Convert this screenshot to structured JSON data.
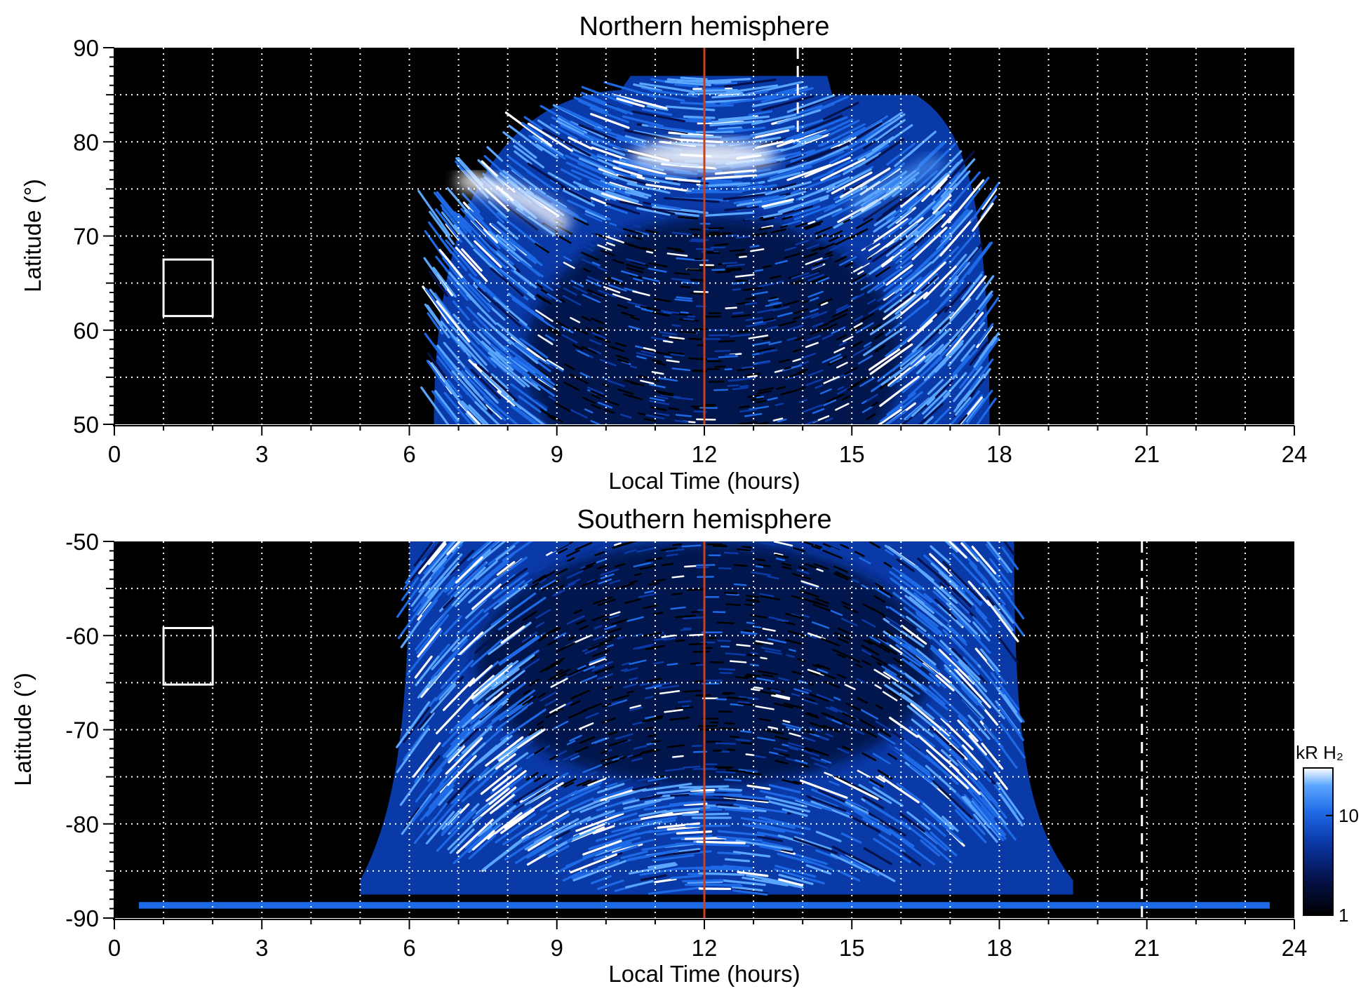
{
  "chart_data": [
    {
      "type": "heatmap",
      "title": "Northern hemisphere",
      "xlabel": "Local Time (hours)",
      "ylabel": "Latitude (°)",
      "xlim": [
        0,
        24
      ],
      "ylim": [
        50,
        90
      ],
      "xticks": [
        0,
        3,
        6,
        9,
        12,
        15,
        18,
        21,
        24
      ],
      "yticks": [
        50,
        60,
        70,
        80,
        90
      ],
      "grid": true,
      "background": "#000000",
      "colormap": [
        "#000000",
        "#05124d",
        "#0a3aa8",
        "#1e6ae6",
        "#5aa6ff",
        "#ffffff"
      ],
      "emission": {
        "lt_start": 6.5,
        "lt_end": 17.8,
        "lat_min": 50,
        "lat_max": 87,
        "bright_arc": {
          "lt_start": 7.0,
          "lt_end": 16.5,
          "lat_min": 73,
          "lat_max": 82,
          "peak_lt": 12.0
        },
        "bright_spot": {
          "lt": 8.6,
          "lat": 73.5
        }
      },
      "reference_lines": [
        {
          "lt": 12.0,
          "color": "#c8401e",
          "style": "solid"
        },
        {
          "lt": 13.9,
          "color": "#ffffff",
          "style": "dashed",
          "lat_min": 80,
          "lat_max": 90
        }
      ],
      "box": {
        "lt_min": 1.0,
        "lt_max": 2.0,
        "lat_min": 61.5,
        "lat_max": 67.5
      }
    },
    {
      "type": "heatmap",
      "title": "Southern hemisphere",
      "xlabel": "Local Time (hours)",
      "ylabel": "Latitude (°)",
      "xlim": [
        0,
        24
      ],
      "ylim": [
        -90,
        -50
      ],
      "xticks": [
        0,
        3,
        6,
        9,
        12,
        15,
        18,
        21,
        24
      ],
      "yticks": [
        -90,
        -80,
        -70,
        -60,
        -50
      ],
      "grid": true,
      "background": "#000000",
      "colormap": [
        "#000000",
        "#05124d",
        "#0a3aa8",
        "#1e6ae6",
        "#5aa6ff",
        "#ffffff"
      ],
      "emission": {
        "lt_start": 6.0,
        "lt_end": 18.3,
        "lat_min": -90,
        "lat_max": -50,
        "wide_base": {
          "lt_start": 5.0,
          "lt_end": 19.5,
          "lat": -86
        },
        "floor_band": {
          "lt_start": 0.5,
          "lt_end": 23.5,
          "lat": -89
        }
      },
      "reference_lines": [
        {
          "lt": 12.0,
          "color": "#c8401e",
          "style": "solid"
        },
        {
          "lt": 20.9,
          "color": "#ffffff",
          "style": "dashed",
          "lat_min": -90,
          "lat_max": -50
        }
      ],
      "box": {
        "lt_min": 1.0,
        "lt_max": 2.0,
        "lat_min": -65.2,
        "lat_max": -59.2
      }
    }
  ],
  "colorbar": {
    "unit_label": "kR H₂",
    "ticks": [
      {
        "value": 1,
        "label": "1"
      },
      {
        "value": 10,
        "label": "10"
      }
    ],
    "range": [
      1,
      30
    ],
    "scale": "log"
  }
}
